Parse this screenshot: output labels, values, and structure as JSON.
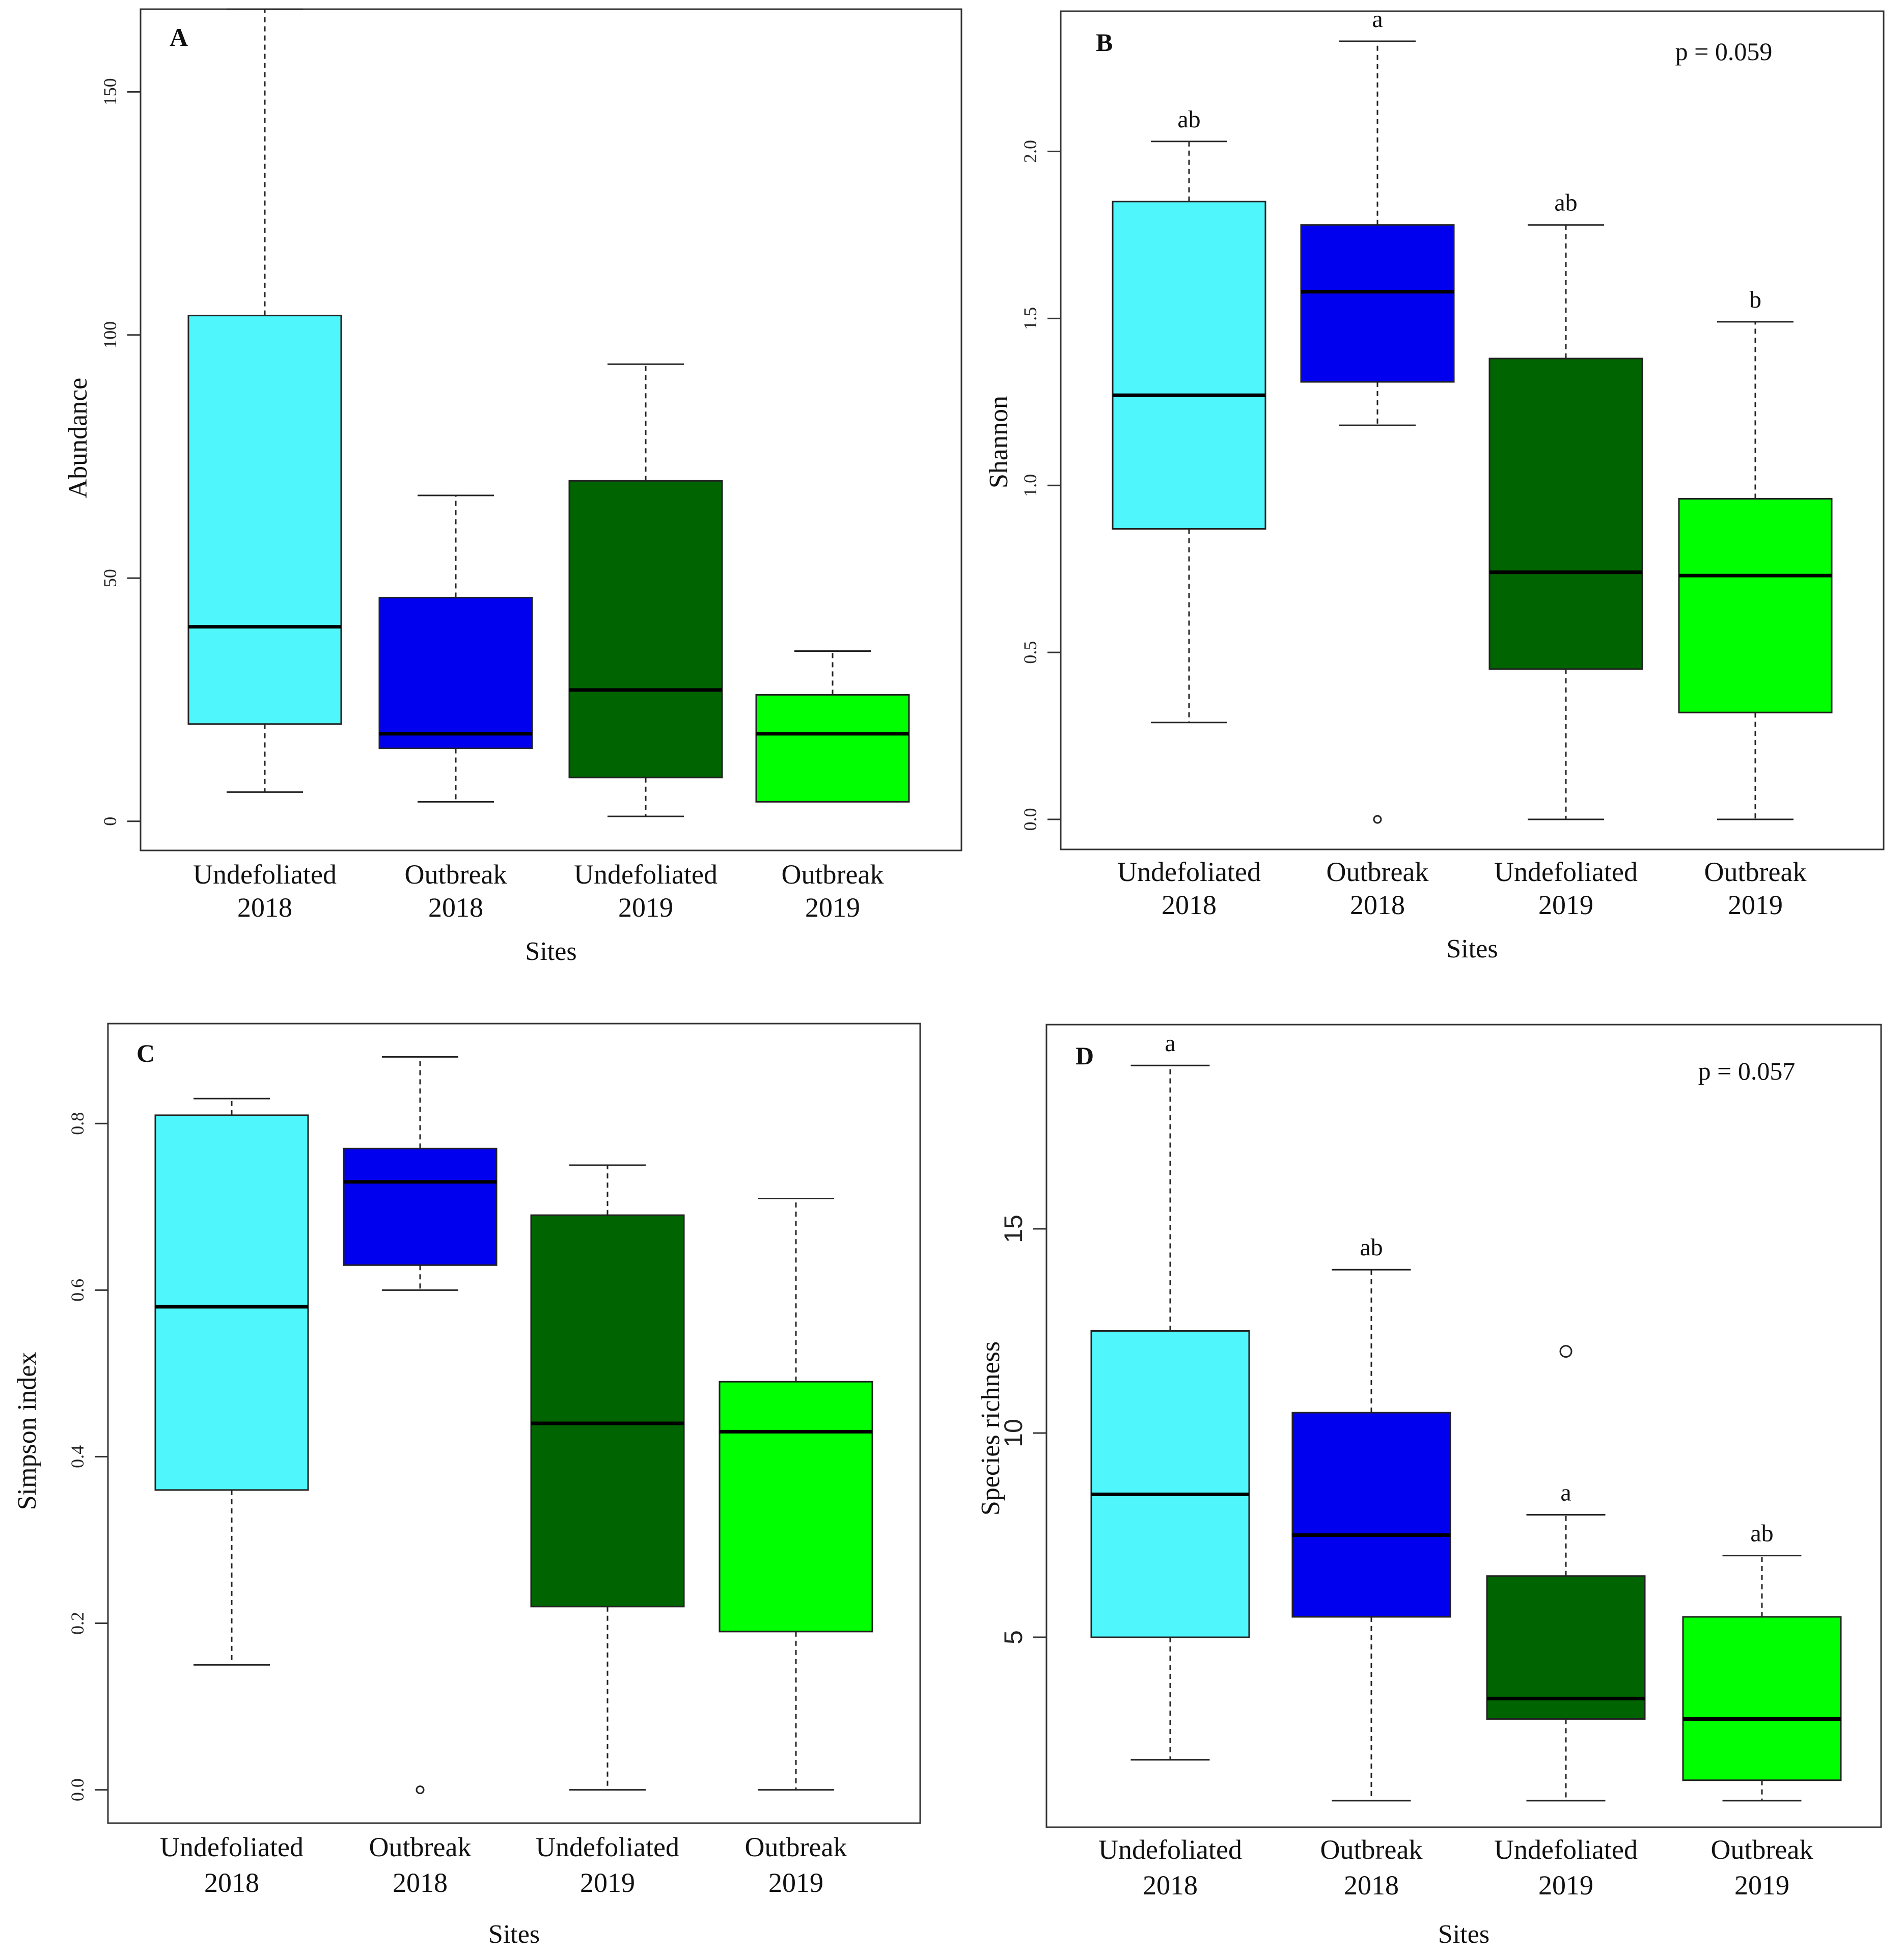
{
  "chart_data": [
    {
      "type": "box",
      "panel": "A",
      "title": "",
      "xlabel": "Sites",
      "ylabel": "Abundance",
      "ylim": [
        -6,
        167
      ],
      "yticks": [
        0,
        50,
        100,
        150
      ],
      "categories": [
        [
          "Undefoliated",
          "2018"
        ],
        [
          "Outbreak",
          "2018"
        ],
        [
          "Undefoliated",
          "2019"
        ],
        [
          "Outbreak",
          "2019"
        ]
      ],
      "colors": [
        "#4ff7fc",
        "#0000ee",
        "#006400",
        "#00ff00"
      ],
      "boxes": [
        {
          "min": 6,
          "q1": 20,
          "median": 40,
          "q3": 104,
          "max": 167,
          "outliers": []
        },
        {
          "min": 4,
          "q1": 15,
          "median": 18,
          "q3": 46,
          "max": 67,
          "outliers": []
        },
        {
          "min": 1,
          "q1": 9,
          "median": 27,
          "q3": 70,
          "max": 94,
          "outliers": []
        },
        {
          "min": 4,
          "q1": 4,
          "median": 18,
          "q3": 26,
          "max": 35,
          "outliers": []
        }
      ],
      "sig_letters": [
        "",
        "",
        "",
        ""
      ],
      "p_value": ""
    },
    {
      "type": "box",
      "panel": "B",
      "title": "",
      "xlabel": "Sites",
      "ylabel": "Shannon",
      "ylim": [
        -0.09,
        2.42
      ],
      "yticks": [
        0.0,
        0.5,
        1.0,
        1.5,
        2.0
      ],
      "categories": [
        [
          "Undefoliated",
          "2018"
        ],
        [
          "Outbreak",
          "2018"
        ],
        [
          "Undefoliated",
          "2019"
        ],
        [
          "Outbreak",
          "2019"
        ]
      ],
      "colors": [
        "#4ff7fc",
        "#0000ee",
        "#006400",
        "#00ff00"
      ],
      "boxes": [
        {
          "min": 0.29,
          "q1": 0.87,
          "median": 1.27,
          "q3": 1.85,
          "max": 2.03,
          "outliers": []
        },
        {
          "min": 1.18,
          "q1": 1.31,
          "median": 1.58,
          "q3": 1.78,
          "max": 2.33,
          "outliers": [
            0.0
          ]
        },
        {
          "min": 0.0,
          "q1": 0.45,
          "median": 0.74,
          "q3": 1.38,
          "max": 1.78,
          "outliers": []
        },
        {
          "min": 0.0,
          "q1": 0.32,
          "median": 0.73,
          "q3": 0.96,
          "max": 1.49,
          "outliers": []
        }
      ],
      "sig_letters": [
        "ab",
        "a",
        "ab",
        "b"
      ],
      "p_value": "p = 0.059"
    },
    {
      "type": "box",
      "panel": "C",
      "title": "",
      "xlabel": "Sites",
      "ylabel": "Simpson index",
      "ylim": [
        -0.04,
        0.92
      ],
      "yticks": [
        0.0,
        0.2,
        0.4,
        0.6,
        0.8
      ],
      "categories": [
        [
          "Undefoliated",
          "2018"
        ],
        [
          "Outbreak",
          "2018"
        ],
        [
          "Undefoliated",
          "2019"
        ],
        [
          "Outbreak",
          "2019"
        ]
      ],
      "colors": [
        "#4ff7fc",
        "#0000ee",
        "#006400",
        "#00ff00"
      ],
      "boxes": [
        {
          "min": 0.15,
          "q1": 0.36,
          "median": 0.58,
          "q3": 0.81,
          "max": 0.83,
          "outliers": []
        },
        {
          "min": 0.6,
          "q1": 0.63,
          "median": 0.73,
          "q3": 0.77,
          "max": 0.88,
          "outliers": [
            0.0
          ]
        },
        {
          "min": 0.0,
          "q1": 0.22,
          "median": 0.44,
          "q3": 0.69,
          "max": 0.75,
          "outliers": []
        },
        {
          "min": 0.0,
          "q1": 0.19,
          "median": 0.43,
          "q3": 0.49,
          "max": 0.71,
          "outliers": []
        }
      ],
      "sig_letters": [
        "",
        "",
        "",
        ""
      ],
      "p_value": ""
    },
    {
      "type": "box",
      "panel": "D",
      "title": "",
      "xlabel": "Sites",
      "ylabel": "Species richness",
      "ylim": [
        0.35,
        20.0
      ],
      "yticks": [
        5,
        10,
        15
      ],
      "categories": [
        [
          "Undefoliated",
          "2018"
        ],
        [
          "Outbreak",
          "2018"
        ],
        [
          "Undefoliated",
          "2019"
        ],
        [
          "Outbreak",
          "2019"
        ]
      ],
      "colors": [
        "#4ff7fc",
        "#0000ee",
        "#006400",
        "#00ff00"
      ],
      "boxes": [
        {
          "min": 2,
          "q1": 5,
          "median": 8.5,
          "q3": 12.5,
          "max": 19,
          "outliers": []
        },
        {
          "min": 1,
          "q1": 5.5,
          "median": 7.5,
          "q3": 10.5,
          "max": 14,
          "outliers": []
        },
        {
          "min": 1,
          "q1": 3,
          "median": 3.5,
          "q3": 6.5,
          "max": 8,
          "outliers": [
            12
          ]
        },
        {
          "min": 1,
          "q1": 1.5,
          "median": 3,
          "q3": 5.5,
          "max": 7,
          "outliers": []
        }
      ],
      "sig_letters": [
        "a",
        "ab",
        "a",
        "ab"
      ],
      "p_value": "p = 0.057"
    }
  ]
}
